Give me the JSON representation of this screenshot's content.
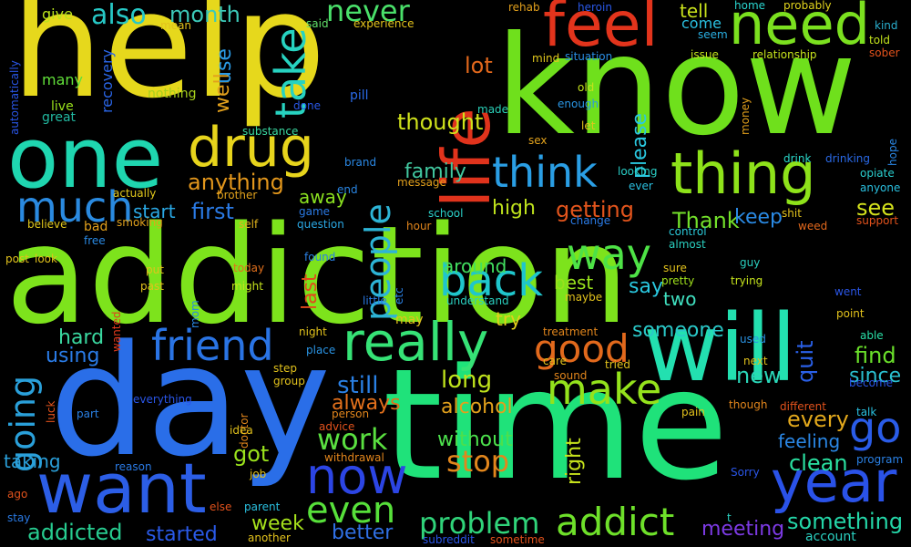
{
  "words": [
    {
      "text": "addiction",
      "color": "#7de31c"
    },
    {
      "text": "time",
      "color": "#1fe27a"
    },
    {
      "text": "help",
      "color": "#e6d81c"
    },
    {
      "text": "know",
      "color": "#6fe01c"
    },
    {
      "text": "day",
      "color": "#2a6ee8"
    },
    {
      "text": "will",
      "color": "#23e0b0"
    },
    {
      "text": "life",
      "color": "#e0331c"
    },
    {
      "text": "one",
      "color": "#1fd6b0"
    },
    {
      "text": "want",
      "color": "#2c5ee6"
    },
    {
      "text": "feel",
      "color": "#e2341c"
    },
    {
      "text": "need",
      "color": "#7be01f"
    },
    {
      "text": "thing",
      "color": "#8ee21a"
    },
    {
      "text": "drug",
      "color": "#e7d41c"
    },
    {
      "text": "really",
      "color": "#36e276"
    },
    {
      "text": "now",
      "color": "#2c45e4"
    },
    {
      "text": "year",
      "color": "#2a52e8"
    },
    {
      "text": "much",
      "color": "#2a8ae0"
    },
    {
      "text": "friend",
      "color": "#2a74e4"
    },
    {
      "text": "think",
      "color": "#2a9ee4"
    },
    {
      "text": "back",
      "color": "#1fc6cc"
    },
    {
      "text": "make",
      "color": "#94e21c"
    },
    {
      "text": "way",
      "color": "#4ee246"
    },
    {
      "text": "take",
      "color": "#27d2c0"
    },
    {
      "text": "people",
      "color": "#2db4d6"
    },
    {
      "text": "good",
      "color": "#e2691c"
    },
    {
      "text": "going",
      "color": "#2aa0da"
    },
    {
      "text": "go",
      "color": "#2a5ce8"
    },
    {
      "text": "addict",
      "color": "#6ee02a"
    },
    {
      "text": "even",
      "color": "#57e03a"
    },
    {
      "text": "never",
      "color": "#4ae06a"
    },
    {
      "text": "also",
      "color": "#27c8c6"
    },
    {
      "text": "problem",
      "color": "#30d47a"
    },
    {
      "text": "work",
      "color": "#5ae040"
    },
    {
      "text": "stop",
      "color": "#e2861c"
    },
    {
      "text": "first",
      "color": "#2a7ae4"
    },
    {
      "text": "month",
      "color": "#3cc9b8"
    },
    {
      "text": "something",
      "color": "#24d6a8"
    },
    {
      "text": "started",
      "color": "#2a5ae8"
    },
    {
      "text": "addicted",
      "color": "#27cc90"
    },
    {
      "text": "family",
      "color": "#42c8a0"
    },
    {
      "text": "anything",
      "color": "#e2961c"
    },
    {
      "text": "Thank",
      "color": "#73e02a"
    },
    {
      "text": "thought",
      "color": "#cfe21c"
    },
    {
      "text": "lot",
      "color": "#e2681c"
    },
    {
      "text": "getting",
      "color": "#e2541c"
    },
    {
      "text": "keep",
      "color": "#2a8ae4"
    },
    {
      "text": "see",
      "color": "#d4e21c"
    },
    {
      "text": "find",
      "color": "#6ae02a"
    },
    {
      "text": "someone",
      "color": "#2ac8c8"
    },
    {
      "text": "still",
      "color": "#2a80e4"
    },
    {
      "text": "always",
      "color": "#e2701c"
    },
    {
      "text": "long",
      "color": "#bfe21c"
    },
    {
      "text": "alcohol",
      "color": "#e2a01c"
    },
    {
      "text": "right",
      "color": "#c6e21c"
    },
    {
      "text": "without",
      "color": "#4ce04c"
    },
    {
      "text": "new",
      "color": "#2ad6b8"
    },
    {
      "text": "quit",
      "color": "#2a60e8"
    },
    {
      "text": "every",
      "color": "#e2a81c"
    },
    {
      "text": "feeling",
      "color": "#2a86e4"
    },
    {
      "text": "clean",
      "color": "#2ae0a0"
    },
    {
      "text": "since",
      "color": "#2ac0d0"
    },
    {
      "text": "got",
      "color": "#9ae21c"
    },
    {
      "text": "week",
      "color": "#a6e21c"
    },
    {
      "text": "better",
      "color": "#3070e4"
    },
    {
      "text": "meeting",
      "color": "#7c3ae4"
    },
    {
      "text": "hard",
      "color": "#3ad8a0"
    },
    {
      "text": "using",
      "color": "#2a7ce8"
    },
    {
      "text": "taking",
      "color": "#2a9ed8"
    },
    {
      "text": "say",
      "color": "#2ac8e0"
    },
    {
      "text": "try",
      "color": "#e2d01c"
    },
    {
      "text": "best",
      "color": "#98e21c"
    },
    {
      "text": "around",
      "color": "#42e060"
    },
    {
      "text": "two",
      "color": "#40e0c0"
    },
    {
      "text": "please",
      "color": "#2ac8e0"
    },
    {
      "text": "high",
      "color": "#bee21c"
    },
    {
      "text": "away",
      "color": "#8ae020"
    },
    {
      "text": "start",
      "color": "#2aa8e4"
    },
    {
      "text": "last",
      "color": "#e2491c"
    },
    {
      "text": "well",
      "color": "#e2a01c"
    },
    {
      "text": "use",
      "color": "#2a9ae4"
    },
    {
      "text": "tell",
      "color": "#c9e21c"
    },
    {
      "text": "come",
      "color": "#2ac0e0"
    },
    {
      "text": "give",
      "color": "#b9e21c"
    },
    {
      "text": "recovery",
      "color": "#2a66e8"
    },
    {
      "text": "many",
      "color": "#62e03a"
    },
    {
      "text": "live",
      "color": "#9ae21c"
    },
    {
      "text": "great",
      "color": "#22b8a0"
    },
    {
      "text": "nothing",
      "color": "#a6d01c"
    },
    {
      "text": "pill",
      "color": "#2a6ae8"
    },
    {
      "text": "said",
      "color": "#62e06a"
    },
    {
      "text": "experience",
      "color": "#e2c21c"
    },
    {
      "text": "rehab",
      "color": "#e2a01c"
    },
    {
      "text": "heroin",
      "color": "#2a58e8"
    },
    {
      "text": "home",
      "color": "#2ad6d0"
    },
    {
      "text": "probably",
      "color": "#e2d41c"
    },
    {
      "text": "seem",
      "color": "#2ab0e4"
    },
    {
      "text": "kind",
      "color": "#2ab0d0"
    },
    {
      "text": "told",
      "color": "#c2e21c"
    },
    {
      "text": "sober",
      "color": "#e2521c"
    },
    {
      "text": "issue",
      "color": "#c2e21c"
    },
    {
      "text": "relationship",
      "color": "#c6e21c"
    },
    {
      "text": "situation",
      "color": "#2a8ee4"
    },
    {
      "text": "mind",
      "color": "#e2c81c"
    },
    {
      "text": "old",
      "color": "#c4e21c"
    },
    {
      "text": "enough",
      "color": "#2a96e4"
    },
    {
      "text": "let",
      "color": "#e2c61c"
    },
    {
      "text": "sex",
      "color": "#e2a21c"
    },
    {
      "text": "made",
      "color": "#2ad0b8"
    },
    {
      "text": "done",
      "color": "#2a58e8"
    },
    {
      "text": "substance",
      "color": "#3ad8a0"
    },
    {
      "text": "brand",
      "color": "#2a88e4"
    },
    {
      "text": "message",
      "color": "#e2a01c"
    },
    {
      "text": "end",
      "color": "#2a86e4"
    },
    {
      "text": "brother",
      "color": "#e2a21c"
    },
    {
      "text": "actually",
      "color": "#e2c81c"
    },
    {
      "text": "believe",
      "color": "#e2c81c"
    },
    {
      "text": "smoking",
      "color": "#e2a21c"
    },
    {
      "text": "bad",
      "color": "#e2a01c"
    },
    {
      "text": "free",
      "color": "#2a8ae4"
    },
    {
      "text": "game",
      "color": "#2a7ae4"
    },
    {
      "text": "question",
      "color": "#2aa8e4"
    },
    {
      "text": "self",
      "color": "#e2b41c"
    },
    {
      "text": "school",
      "color": "#2ad0c8"
    },
    {
      "text": "hour",
      "color": "#e2861c"
    },
    {
      "text": "change",
      "color": "#2a7ce8"
    },
    {
      "text": "drink",
      "color": "#2ad6c8"
    },
    {
      "text": "drinking",
      "color": "#2a6ae8"
    },
    {
      "text": "opiate",
      "color": "#2ad0d0"
    },
    {
      "text": "anyone",
      "color": "#2ac0e0"
    },
    {
      "text": "hope",
      "color": "#2a86e4"
    },
    {
      "text": "shit",
      "color": "#e2c21c"
    },
    {
      "text": "weed",
      "color": "#e2681c"
    },
    {
      "text": "support",
      "color": "#e2521c"
    },
    {
      "text": "looking",
      "color": "#2ad0c8"
    },
    {
      "text": "ever",
      "color": "#2ac0e0"
    },
    {
      "text": "money",
      "color": "#e2a01c"
    },
    {
      "text": "control",
      "color": "#2ac8d8"
    },
    {
      "text": "almost",
      "color": "#2ad0c0"
    },
    {
      "text": "sure",
      "color": "#e2c21c"
    },
    {
      "text": "pretty",
      "color": "#a0e21c"
    },
    {
      "text": "guy",
      "color": "#2ad0c0"
    },
    {
      "text": "trying",
      "color": "#c4e21c"
    },
    {
      "text": "went",
      "color": "#2a56e8"
    },
    {
      "text": "point",
      "color": "#e2c21c"
    },
    {
      "text": "able",
      "color": "#2ae0a8"
    },
    {
      "text": "post",
      "color": "#e2c21c"
    },
    {
      "text": "look",
      "color": "#e2c21c"
    },
    {
      "text": "found",
      "color": "#2a80e4"
    },
    {
      "text": "today",
      "color": "#e2701c"
    },
    {
      "text": "put",
      "color": "#e2c21c"
    },
    {
      "text": "past",
      "color": "#e2c21c"
    },
    {
      "text": "might",
      "color": "#c4e21c"
    },
    {
      "text": "mom",
      "color": "#2a88e4"
    },
    {
      "text": "little",
      "color": "#2a7ae4"
    },
    {
      "text": "understand",
      "color": "#2ad0c0"
    },
    {
      "text": "maybe",
      "color": "#e2c21c"
    },
    {
      "text": "etc",
      "color": "#2a80e4"
    },
    {
      "text": "night",
      "color": "#e2c21c"
    },
    {
      "text": "place",
      "color": "#2a94e4"
    },
    {
      "text": "may",
      "color": "#e2c21c"
    },
    {
      "text": "wanted",
      "color": "#e23a1c"
    },
    {
      "text": "luck",
      "color": "#e2521c"
    },
    {
      "text": "part",
      "color": "#2a80e4"
    },
    {
      "text": "everything",
      "color": "#2a56e8"
    },
    {
      "text": "doctor",
      "color": "#e2861c"
    },
    {
      "text": "step",
      "color": "#e2c21c"
    },
    {
      "text": "group",
      "color": "#e2c21c"
    },
    {
      "text": "person",
      "color": "#e2861c"
    },
    {
      "text": "advice",
      "color": "#e2521c"
    },
    {
      "text": "idea",
      "color": "#e2c21c"
    },
    {
      "text": "withdrawal",
      "color": "#e2861c"
    },
    {
      "text": "reason",
      "color": "#2a7ae4"
    },
    {
      "text": "job",
      "color": "#e2c21c"
    },
    {
      "text": "else",
      "color": "#e2521c"
    },
    {
      "text": "parent",
      "color": "#2ac0e0"
    },
    {
      "text": "ago",
      "color": "#e2521c"
    },
    {
      "text": "stay",
      "color": "#2a7ae4"
    },
    {
      "text": "another",
      "color": "#e2c21c"
    },
    {
      "text": "subreddit",
      "color": "#2a56e8"
    },
    {
      "text": "sometime",
      "color": "#e2521c"
    },
    {
      "text": "care",
      "color": "#e2c21c"
    },
    {
      "text": "tried",
      "color": "#e2c21c"
    },
    {
      "text": "sound",
      "color": "#e2861c"
    },
    {
      "text": "treatment",
      "color": "#e2861c"
    },
    {
      "text": "pain",
      "color": "#e2c21c"
    },
    {
      "text": "next",
      "color": "#e2c21c"
    },
    {
      "text": "used",
      "color": "#2a94e4"
    },
    {
      "text": "though",
      "color": "#e2861c"
    },
    {
      "text": "different",
      "color": "#e2521c"
    },
    {
      "text": "talk",
      "color": "#2ac0e0"
    },
    {
      "text": "become",
      "color": "#2a56e8"
    },
    {
      "text": "program",
      "color": "#2a80e4"
    },
    {
      "text": "Sorry",
      "color": "#2a56e8"
    },
    {
      "text": "account",
      "color": "#2ad0c0"
    },
    {
      "text": "mean",
      "color": "#e2c21c"
    },
    {
      "text": "automatically",
      "color": "#2a56e8"
    },
    {
      "text": "t",
      "color": "#2ad0c0"
    }
  ]
}
